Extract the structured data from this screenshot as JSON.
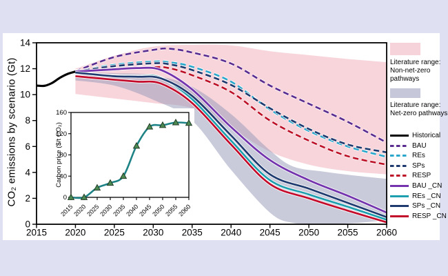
{
  "figure": {
    "background_color": "#dfe1f2",
    "panel_color": "#ffffff"
  },
  "chart_data": {
    "type": "line",
    "title": "",
    "xlabel": "",
    "ylabel": "CO₂ emissions by scenario (Gt)",
    "xlim": [
      2015,
      2060
    ],
    "ylim": [
      0,
      14
    ],
    "x_ticks": [
      2015,
      2020,
      2025,
      2030,
      2035,
      2040,
      2045,
      2050,
      2055,
      2060
    ],
    "y_ticks": [
      0,
      2,
      4,
      6,
      8,
      10,
      12,
      14
    ],
    "grid": false,
    "legend_position": "right-outside",
    "bands": [
      {
        "name": "Literature range: Non-net-zero pathways",
        "color": "rgba(240,178,190,0.55)",
        "x": [
          2020,
          2025,
          2030,
          2035,
          2040,
          2045,
          2050,
          2055,
          2060
        ],
        "upper": [
          12.0,
          13.0,
          13.7,
          13.85,
          13.8,
          13.35,
          13.05,
          12.75,
          12.5
        ],
        "lower": [
          10.05,
          9.7,
          9.35,
          8.95,
          7.4,
          5.6,
          4.6,
          4.1,
          3.85
        ]
      },
      {
        "name": "Literature range: Net-zero pathways",
        "color": "rgba(148,151,184,0.5)",
        "x": [
          2020,
          2025,
          2030,
          2035,
          2040,
          2045,
          2048,
          2052,
          2056,
          2060
        ],
        "upper": [
          11.75,
          11.65,
          11.5,
          10.6,
          8.5,
          5.7,
          4.45,
          4.05,
          3.75,
          3.5
        ],
        "lower": [
          11.1,
          10.7,
          9.6,
          8.0,
          4.2,
          0.9,
          0.1,
          0.0,
          0.1,
          0.3
        ]
      }
    ],
    "series": [
      {
        "name": "Historical",
        "color": "#000000",
        "dash": false,
        "width": 3.2,
        "x": [
          2015,
          2016,
          2017,
          2018,
          2019,
          2020
        ],
        "y": [
          10.7,
          10.68,
          10.9,
          11.3,
          11.6,
          11.78
        ]
      },
      {
        "name": "BAU",
        "color": "#5b2d91",
        "dash": true,
        "width": 2.7,
        "x": [
          2020,
          2025,
          2030,
          2032,
          2035,
          2040,
          2045,
          2050,
          2055,
          2060
        ],
        "y": [
          11.8,
          12.9,
          13.45,
          13.55,
          13.25,
          12.4,
          10.7,
          9.3,
          7.9,
          6.3
        ]
      },
      {
        "name": "REs",
        "color": "#2ba7cb",
        "dash": true,
        "width": 2.7,
        "x": [
          2020,
          2025,
          2030,
          2032,
          2035,
          2040,
          2045,
          2050,
          2055,
          2060
        ],
        "y": [
          11.78,
          12.3,
          12.55,
          12.5,
          12.15,
          11.0,
          8.85,
          7.2,
          6.0,
          5.2
        ]
      },
      {
        "name": "SPs",
        "color": "#1e3a6e",
        "dash": true,
        "width": 2.7,
        "x": [
          2020,
          2025,
          2030,
          2032,
          2035,
          2040,
          2045,
          2050,
          2055,
          2060
        ],
        "y": [
          11.78,
          12.2,
          12.42,
          12.35,
          11.9,
          10.75,
          8.95,
          7.35,
          6.15,
          5.55
        ]
      },
      {
        "name": "RESP",
        "color": "#bd1128",
        "dash": true,
        "width": 2.7,
        "x": [
          2020,
          2025,
          2030,
          2032,
          2035,
          2040,
          2045,
          2050,
          2055,
          2060
        ],
        "y": [
          11.72,
          12.0,
          12.12,
          12.05,
          11.5,
          10.2,
          8.0,
          6.45,
          5.25,
          4.6
        ]
      },
      {
        "name": "BAU _CN",
        "color": "#7334ad",
        "dash": false,
        "width": 2.8,
        "x": [
          2020,
          2025,
          2028,
          2031,
          2035,
          2040,
          2045,
          2050,
          2055,
          2060
        ],
        "y": [
          11.78,
          11.95,
          12.05,
          11.9,
          10.4,
          7.5,
          4.95,
          3.4,
          2.2,
          0.9
        ]
      },
      {
        "name": "REs _CN",
        "color": "#1d9fae",
        "dash": false,
        "width": 2.7,
        "x": [
          2020,
          2025,
          2028,
          2031,
          2035,
          2040,
          2045,
          2050,
          2055,
          2060
        ],
        "y": [
          11.68,
          11.46,
          11.42,
          11.3,
          9.65,
          6.45,
          3.4,
          2.3,
          1.35,
          0.35
        ]
      },
      {
        "name": "SPs _CN",
        "color": "#1e3a6e",
        "dash": false,
        "width": 2.7,
        "x": [
          2020,
          2025,
          2028,
          2031,
          2035,
          2040,
          2045,
          2050,
          2055,
          2060
        ],
        "y": [
          11.7,
          11.42,
          11.38,
          11.25,
          9.9,
          6.85,
          3.85,
          2.75,
          1.65,
          0.55
        ]
      },
      {
        "name": "RESP _CN",
        "color": "#c30a2a",
        "dash": false,
        "width": 2.7,
        "x": [
          2020,
          2025,
          2028,
          2031,
          2035,
          2040,
          2045,
          2050,
          2055,
          2060
        ],
        "y": [
          11.42,
          11.15,
          11.0,
          10.85,
          9.35,
          6.15,
          3.1,
          2.0,
          1.05,
          0.15
        ]
      }
    ],
    "inset": {
      "type": "line",
      "ylabel": "Carbon price ($/t CO₂)",
      "xlim": [
        2015,
        2060
      ],
      "ylim": [
        0,
        160
      ],
      "x_ticks": [
        2015,
        2020,
        2025,
        2030,
        2035,
        2040,
        2045,
        2050,
        2055,
        2060
      ],
      "y_ticks": [
        0,
        40,
        80,
        120,
        160
      ],
      "line_color": "#1d8386",
      "marker": "triangle-up",
      "marker_fill": "#4c8b51",
      "marker_stroke": "#233b28",
      "x": [
        2015,
        2020,
        2025,
        2030,
        2035,
        2040,
        2045,
        2050,
        2055,
        2060
      ],
      "y": [
        0,
        0,
        18,
        27,
        40,
        97,
        133,
        136,
        141,
        140
      ]
    }
  },
  "legend": {
    "range_items": [
      {
        "id": "non-net-zero",
        "swatch_color": "#f6d3da",
        "label_lines": [
          "Literature range:",
          "Non-net-zero",
          "pathways"
        ]
      },
      {
        "id": "net-zero",
        "swatch_color": "#c6c8da",
        "label_lines": [
          "Literature range:",
          "Net-zero pathways"
        ]
      }
    ],
    "line_items": [
      {
        "label": "Historical",
        "color": "#000000",
        "dash": false
      },
      {
        "label": "BAU",
        "color": "#5b2d91",
        "dash": true
      },
      {
        "label": "REs",
        "color": "#2ba7cb",
        "dash": true
      },
      {
        "label": "SPs",
        "color": "#1e3a6e",
        "dash": true
      },
      {
        "label": "RESP",
        "color": "#bd1128",
        "dash": true
      },
      {
        "label": "BAU _CN",
        "color": "#7334ad",
        "dash": false
      },
      {
        "label": "REs _CN",
        "color": "#1d9fae",
        "dash": false
      },
      {
        "label": "SPs _CN",
        "color": "#1e3a6e",
        "dash": false
      },
      {
        "label": "RESP _CN",
        "color": "#c30a2a",
        "dash": false
      }
    ]
  }
}
